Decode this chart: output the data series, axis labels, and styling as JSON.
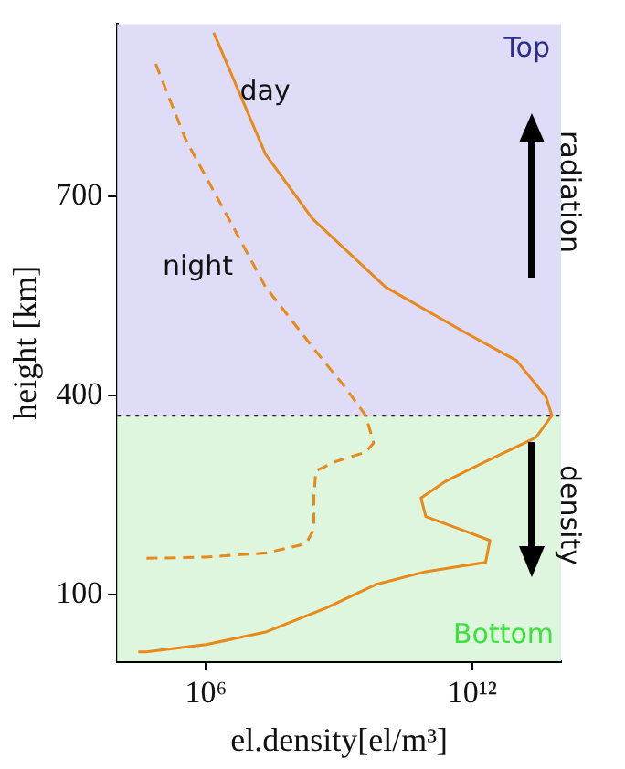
{
  "chart_data": {
    "type": "line",
    "xlabel": "el.density[el/m³]",
    "ylabel": "height [km]",
    "log": "x",
    "legend": false,
    "marker": "none",
    "xlim": [
      10000.0,
      100000000000000.0
    ],
    "xticks": [
      {
        "value": 1000000.0,
        "label": "10⁶"
      },
      {
        "value": 1000000000000.0,
        "label": "10¹²"
      }
    ],
    "ylim": [
      0,
      960
    ],
    "yticks": [
      100,
      400,
      700
    ],
    "series": [
      {
        "name": "day",
        "color": "#e8891a",
        "line_style": "solid",
        "x": [
          1500000.0,
          22000000.0,
          250000000.0,
          11000000000.0,
          700000000000.0,
          10000000000000.0,
          46000000000000.0,
          62000000000000.0,
          27000000000000.0,
          2000000000000.0,
          250000000000.0,
          70000000000.0,
          90000000000.0,
          700000000000.0,
          2500000000000.0,
          2000000000000.0,
          90000000000.0,
          7000000000.0,
          500000000.0,
          22000000.0,
          1000000.0,
          45000.0,
          30000.0
        ],
        "values": [
          947,
          764,
          667,
          564,
          495,
          453,
          398,
          370,
          337,
          301,
          271,
          246,
          218,
          196,
          182,
          149,
          135,
          116,
          80,
          44,
          25,
          14,
          14
        ]
      },
      {
        "name": "night",
        "color": "#e8891a",
        "line_style": "dashed",
        "x": [
          74000.0,
          350000.0,
          2800000.0,
          22000000.0,
          300000000.0,
          1400000000.0,
          4000000000.0,
          6000000000.0,
          4000000000.0,
          850000000.0,
          300000000.0,
          270000000.0,
          270000000.0,
          180000000.0,
          22000000.0,
          1000000.0,
          45000.0
        ],
        "values": [
          900,
          786,
          675,
          564,
          467,
          412,
          370,
          329,
          315,
          301,
          287,
          246,
          199,
          177,
          163,
          157,
          155
        ]
      }
    ],
    "ref_lines": [
      {
        "axis": "y",
        "value": 370,
        "color": "#222222",
        "line_style": "dotted"
      }
    ],
    "bands": [
      {
        "axis": "y",
        "from": 370,
        "to": 960,
        "color": "#dedcf6"
      },
      {
        "axis": "y",
        "from": 0,
        "to": 370,
        "color": "#ddf6dd"
      }
    ],
    "annotations": [
      "Top",
      "Bottom",
      "radiation",
      "density"
    ]
  }
}
